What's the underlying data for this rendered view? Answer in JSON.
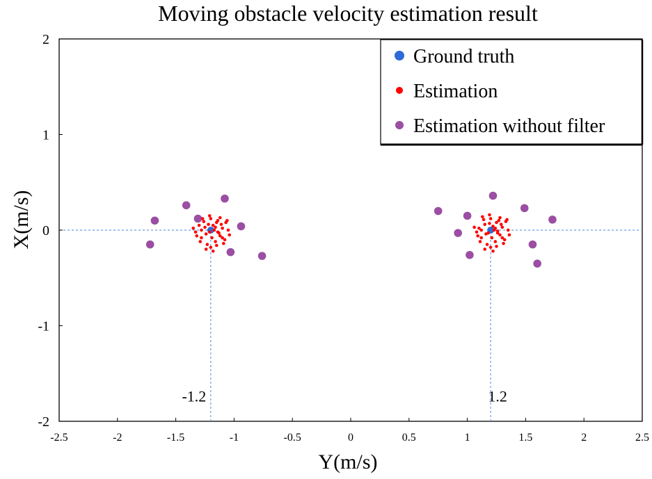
{
  "chart_data": {
    "type": "scatter",
    "title": "Moving obstacle velocity estimation result",
    "xlabel": "Y(m/s)",
    "ylabel": "X(m/s)",
    "xlim": [
      -2.5,
      2.5
    ],
    "ylim": [
      -2,
      2
    ],
    "xticks": [
      -2.5,
      -2,
      -1.5,
      -1,
      -0.5,
      0,
      0.5,
      1,
      1.5,
      2,
      2.5
    ],
    "xtick_labels": [
      "-2.5",
      "-2",
      "-1.5",
      "-1",
      "-0.5",
      "0",
      "0.5",
      "1",
      "1.5",
      "2",
      "2.5"
    ],
    "yticks": [
      2,
      1,
      0,
      -1,
      -2
    ],
    "ytick_labels": [
      "2",
      "1",
      "0",
      "-1",
      "-2"
    ],
    "legend_position": "top-right",
    "annotations": [
      {
        "text": "-1.2",
        "x": -1.2,
        "y": -1.75
      },
      {
        "text": "1.2",
        "x": 1.2,
        "y": -1.75
      }
    ],
    "reference_lines": [
      {
        "orientation": "horizontal",
        "y": 0,
        "from": -2.5,
        "to": -1.2
      },
      {
        "orientation": "vertical",
        "x": -1.2,
        "from": -2,
        "to": 0
      },
      {
        "orientation": "horizontal",
        "y": 0,
        "from": 1.2,
        "to": 2.5
      },
      {
        "orientation": "vertical",
        "x": 1.2,
        "from": -2,
        "to": 0
      }
    ],
    "series": [
      {
        "name": "Ground truth",
        "color": "#2e6bd6",
        "points": [
          [
            -1.2,
            0
          ],
          [
            1.2,
            0
          ]
        ]
      },
      {
        "name": "Estimation",
        "color": "#ff0000",
        "points": [
          [
            -1.18,
            0.05
          ],
          [
            -1.21,
            -0.02
          ],
          [
            -1.15,
            0.08
          ],
          [
            -1.25,
            0.03
          ],
          [
            -1.12,
            -0.06
          ],
          [
            -1.28,
            -0.08
          ],
          [
            -1.2,
            0.12
          ],
          [
            -1.1,
            0.02
          ],
          [
            -1.3,
            0.05
          ],
          [
            -1.16,
            -0.12
          ],
          [
            -1.23,
            -0.15
          ],
          [
            -1.08,
            -0.1
          ],
          [
            -1.33,
            -0.02
          ],
          [
            -1.14,
            0.1
          ],
          [
            -1.26,
            0.09
          ],
          [
            -1.19,
            -0.08
          ],
          [
            -1.11,
            0.06
          ],
          [
            -1.05,
            0.0
          ],
          [
            -1.29,
            -0.12
          ],
          [
            -1.17,
            0.0
          ],
          [
            -1.22,
            0.06
          ],
          [
            -1.13,
            -0.03
          ],
          [
            -1.24,
            -0.04
          ],
          [
            -1.35,
            0.02
          ],
          [
            -1.09,
            -0.14
          ],
          [
            -1.2,
            -0.18
          ],
          [
            -1.27,
            0.12
          ],
          [
            -1.07,
            0.08
          ],
          [
            -1.15,
            -0.16
          ],
          [
            -1.32,
            -0.06
          ],
          [
            -1.04,
            -0.05
          ],
          [
            -1.21,
            0.15
          ],
          [
            -1.12,
            0.13
          ],
          [
            -1.18,
            -0.22
          ],
          [
            -1.06,
            0.1
          ],
          [
            -1.24,
            -0.2
          ],
          [
            -1.16,
            0.03
          ],
          [
            -1.1,
            -0.08
          ],
          [
            -1.28,
            0.0
          ],
          [
            -1.14,
            -0.02
          ],
          [
            1.22,
            0.04
          ],
          [
            1.18,
            -0.03
          ],
          [
            1.25,
            0.08
          ],
          [
            1.15,
            0.06
          ],
          [
            1.28,
            -0.05
          ],
          [
            1.12,
            -0.08
          ],
          [
            1.2,
            0.12
          ],
          [
            1.3,
            0.03
          ],
          [
            1.1,
            0.02
          ],
          [
            1.24,
            -0.12
          ],
          [
            1.17,
            -0.15
          ],
          [
            1.32,
            -0.1
          ],
          [
            1.08,
            -0.02
          ],
          [
            1.27,
            0.1
          ],
          [
            1.14,
            0.11
          ],
          [
            1.21,
            -0.08
          ],
          [
            1.29,
            0.06
          ],
          [
            1.35,
            0.0
          ],
          [
            1.11,
            -0.12
          ],
          [
            1.23,
            0.0
          ],
          [
            1.19,
            0.07
          ],
          [
            1.26,
            -0.03
          ],
          [
            1.16,
            -0.04
          ],
          [
            1.06,
            0.03
          ],
          [
            1.31,
            -0.14
          ],
          [
            1.2,
            -0.18
          ],
          [
            1.13,
            0.14
          ],
          [
            1.33,
            0.09
          ],
          [
            1.25,
            -0.17
          ],
          [
            1.09,
            -0.06
          ],
          [
            1.36,
            -0.05
          ],
          [
            1.19,
            0.16
          ],
          [
            1.28,
            0.13
          ],
          [
            1.22,
            -0.22
          ],
          [
            1.34,
            0.11
          ],
          [
            1.15,
            -0.2
          ],
          [
            1.24,
            0.02
          ],
          [
            1.3,
            -0.08
          ],
          [
            1.12,
            0.0
          ],
          [
            1.26,
            -0.01
          ]
        ]
      },
      {
        "name": "Estimation without filter",
        "color": "#9b4ea3",
        "points": [
          [
            -1.08,
            0.33
          ],
          [
            -1.41,
            0.26
          ],
          [
            -1.68,
            0.1
          ],
          [
            -1.31,
            0.12
          ],
          [
            -0.94,
            0.04
          ],
          [
            -1.72,
            -0.15
          ],
          [
            -1.03,
            -0.23
          ],
          [
            -0.76,
            -0.27
          ],
          [
            1.22,
            0.36
          ],
          [
            0.75,
            0.2
          ],
          [
            1.0,
            0.15
          ],
          [
            1.49,
            0.23
          ],
          [
            1.73,
            0.11
          ],
          [
            0.92,
            -0.03
          ],
          [
            1.56,
            -0.15
          ],
          [
            1.02,
            -0.26
          ],
          [
            1.6,
            -0.35
          ]
        ]
      }
    ]
  }
}
